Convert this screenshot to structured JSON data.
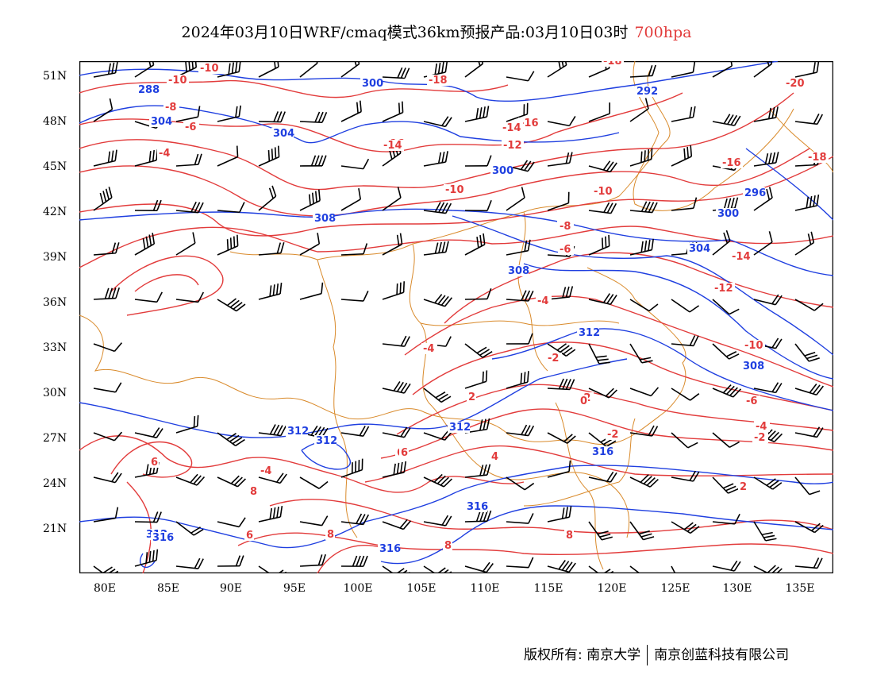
{
  "title": {
    "main": "2024年03月10日WRF/cmaq模式36km预报产品:03月10日03时",
    "level": "700hpa"
  },
  "axes": {
    "lat_labels": [
      "51N",
      "48N",
      "45N",
      "42N",
      "39N",
      "36N",
      "33N",
      "30N",
      "27N",
      "24N",
      "21N"
    ],
    "lon_labels": [
      "80E",
      "85E",
      "90E",
      "95E",
      "100E",
      "105E",
      "110E",
      "115E",
      "120E",
      "125E",
      "130E",
      "135E"
    ]
  },
  "colors": {
    "temperature": "#e23b3b",
    "height": "#1f3fe0",
    "border": "#d98a2b",
    "barb": "#000000"
  },
  "temperature_labels": [
    "-10",
    "-10",
    "-8",
    "-6",
    "-4",
    "-18",
    "-16",
    "-14",
    "-16",
    "-14",
    "-12",
    "-10",
    "-10",
    "-8",
    "-18",
    "-16",
    "-20",
    "-18",
    "-8",
    "-6",
    "-14",
    "-12",
    "-4",
    "-4",
    "-2",
    "-10",
    "-6",
    "-2",
    "0",
    "2",
    "-2",
    "-4",
    "-2",
    "4",
    "6",
    "8",
    "6",
    "8",
    "6",
    "6",
    "8",
    "-4",
    "2",
    "6",
    "8"
  ],
  "height_labels": [
    "288",
    "304",
    "304",
    "300",
    "292",
    "300",
    "308",
    "296",
    "300",
    "304",
    "308",
    "312",
    "308",
    "312",
    "312",
    "312",
    "312",
    "316",
    "316",
    "316",
    "316"
  ],
  "footer": {
    "owner": "版权所有: 南京大学",
    "company": "南京创蓝科技有限公司"
  }
}
